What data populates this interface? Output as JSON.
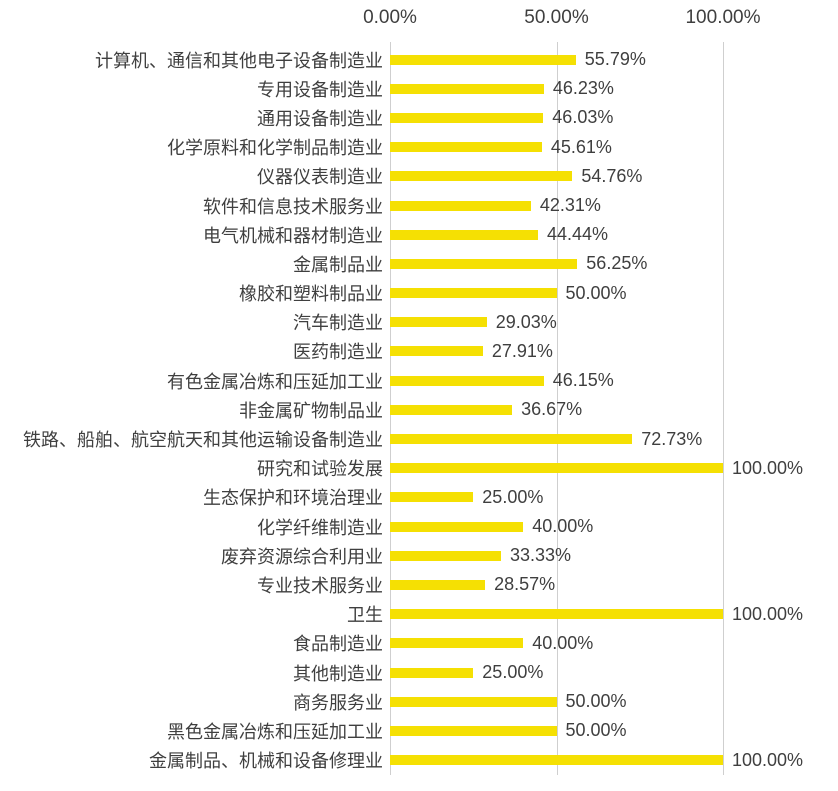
{
  "chart_data": {
    "type": "bar",
    "orientation": "horizontal",
    "title": "",
    "categories": [
      "计算机、通信和其他电子设备制造业",
      "专用设备制造业",
      "通用设备制造业",
      "化学原料和化学制品制造业",
      "仪器仪表制造业",
      "软件和信息技术服务业",
      "电气机械和器材制造业",
      "金属制品业",
      "橡胶和塑料制品业",
      "汽车制造业",
      "医药制造业",
      "有色金属冶炼和压延加工业",
      "非金属矿物制品业",
      "铁路、船舶、航空航天和其他运输设备制造业",
      "研究和试验发展",
      "生态保护和环境治理业",
      "化学纤维制造业",
      "废弃资源综合利用业",
      "专业技术服务业",
      "卫生",
      "食品制造业",
      "其他制造业",
      "商务服务业",
      "黑色金属冶炼和压延加工业",
      "金属制品、机械和设备修理业"
    ],
    "values": [
      55.79,
      46.23,
      46.03,
      45.61,
      54.76,
      42.31,
      44.44,
      56.25,
      50.0,
      29.03,
      27.91,
      46.15,
      36.67,
      72.73,
      100.0,
      25.0,
      40.0,
      33.33,
      28.57,
      100.0,
      40.0,
      25.0,
      50.0,
      50.0,
      100.0
    ],
    "value_labels": [
      "55.79%",
      "46.23%",
      "46.03%",
      "45.61%",
      "54.76%",
      "42.31%",
      "44.44%",
      "56.25%",
      "50.00%",
      "29.03%",
      "27.91%",
      "46.15%",
      "36.67%",
      "72.73%",
      "100.00%",
      "25.00%",
      "40.00%",
      "33.33%",
      "28.57%",
      "100.00%",
      "40.00%",
      "25.00%",
      "50.00%",
      "50.00%",
      "100.00%"
    ],
    "x_axis": {
      "position": "top",
      "ticks": [
        "0.00%",
        "50.00%",
        "100.00%"
      ],
      "tick_values": [
        0,
        50,
        100
      ],
      "range": [
        0,
        100
      ]
    },
    "legend": "none",
    "grid": "vertical",
    "colors": {
      "bar": "#F5E003",
      "gridline": "#CFCFCF",
      "text": "#3F3F3F"
    }
  }
}
